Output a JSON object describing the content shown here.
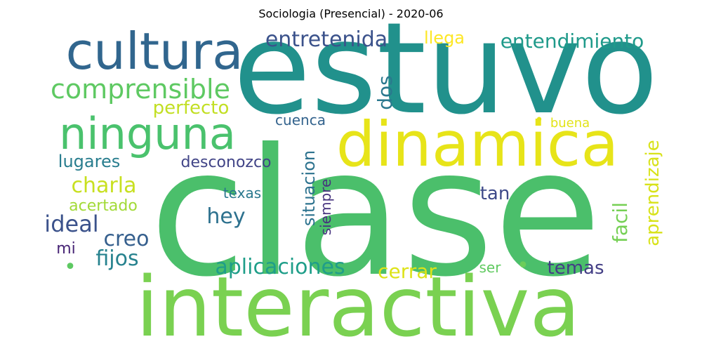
{
  "title": "Sociologia (Presencial) - 2020-06",
  "words": [
    {
      "text": "clase",
      "color": "#4bbf6b"
    },
    {
      "text": "estuvo",
      "color": "#21918c"
    },
    {
      "text": "interactiva",
      "color": "#7ad151"
    },
    {
      "text": "dinamica",
      "color": "#e7e419"
    },
    {
      "text": "cultura",
      "color": "#31668e"
    },
    {
      "text": "ninguna",
      "color": "#4ac26d"
    },
    {
      "text": "comprensible",
      "color": "#5ec962"
    },
    {
      "text": "entretenida",
      "color": "#3b528b"
    },
    {
      "text": "entendimiento",
      "color": "#1f9a8a"
    },
    {
      "text": "llega",
      "color": "#fde725"
    },
    {
      "text": "perfecto",
      "color": "#c2df23"
    },
    {
      "text": "dos",
      "color": "#2a788e"
    },
    {
      "text": "cuenca",
      "color": "#33638d"
    },
    {
      "text": "buena",
      "color": "#e2e418"
    },
    {
      "text": "aprendizaje",
      "color": "#d8e219"
    },
    {
      "text": "facil",
      "color": "#75d054"
    },
    {
      "text": "lugares",
      "color": "#287d8e"
    },
    {
      "text": "desconozco",
      "color": "#414487"
    },
    {
      "text": "situacion",
      "color": "#2c728e"
    },
    {
      "text": "siempre",
      "color": "#46337e"
    },
    {
      "text": "charla",
      "color": "#c8e020"
    },
    {
      "text": "texas",
      "color": "#2a788e"
    },
    {
      "text": "tan",
      "color": "#3e4a89"
    },
    {
      "text": "acertado",
      "color": "#a2da37"
    },
    {
      "text": "hey",
      "color": "#2d718e"
    },
    {
      "text": "ideal",
      "color": "#3b528b"
    },
    {
      "text": "creo",
      "color": "#355f8d"
    },
    {
      "text": "mi",
      "color": "#482576"
    },
    {
      "text": "fijos",
      "color": "#26828e"
    },
    {
      "text": "aplicaciones",
      "color": "#1f9e89"
    },
    {
      "text": "cerrar",
      "color": "#dde318"
    },
    {
      "text": "ser",
      "color": "#60ca60"
    },
    {
      "text": "temas",
      "color": "#433e85"
    },
    {
      "text": "•",
      "color": "#5ec962"
    },
    {
      "text": "•",
      "color": "#6ccd5a"
    },
    {
      "text": "•",
      "color": "#e5e419"
    }
  ]
}
